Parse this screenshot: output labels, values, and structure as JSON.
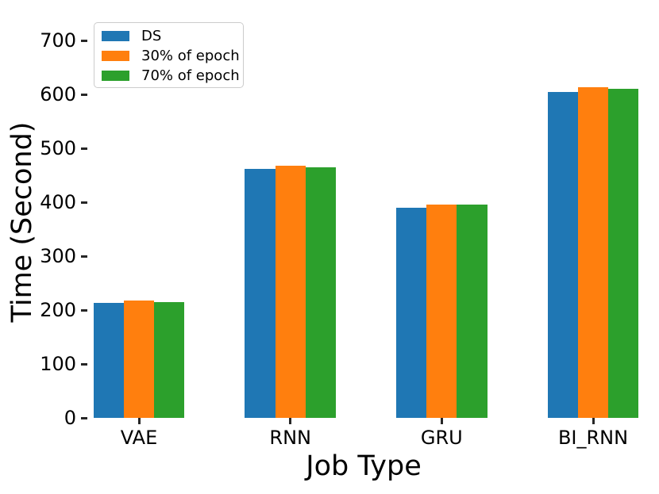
{
  "chart_data": {
    "type": "bar",
    "title": "",
    "xlabel": "Job Type",
    "ylabel": "Time (Second)",
    "categories": [
      "VAE",
      "RNN",
      "GRU",
      "BI_RNN"
    ],
    "series": [
      {
        "name": "DS",
        "color": "#1f77b4",
        "values": [
          213,
          462,
          389,
          605
        ]
      },
      {
        "name": "30% of epoch",
        "color": "#ff7f0e",
        "values": [
          218,
          467,
          395,
          613
        ]
      },
      {
        "name": "70% of epoch",
        "color": "#2ca02c",
        "values": [
          215,
          465,
          396,
          611
        ]
      }
    ],
    "yticks": [
      0,
      100,
      200,
      300,
      400,
      500,
      600,
      700
    ],
    "ylim": [
      0,
      740
    ],
    "grid": false,
    "spines": false,
    "legend_position": "upper-left",
    "tick_color": "#262626",
    "text_color": "#000000"
  }
}
